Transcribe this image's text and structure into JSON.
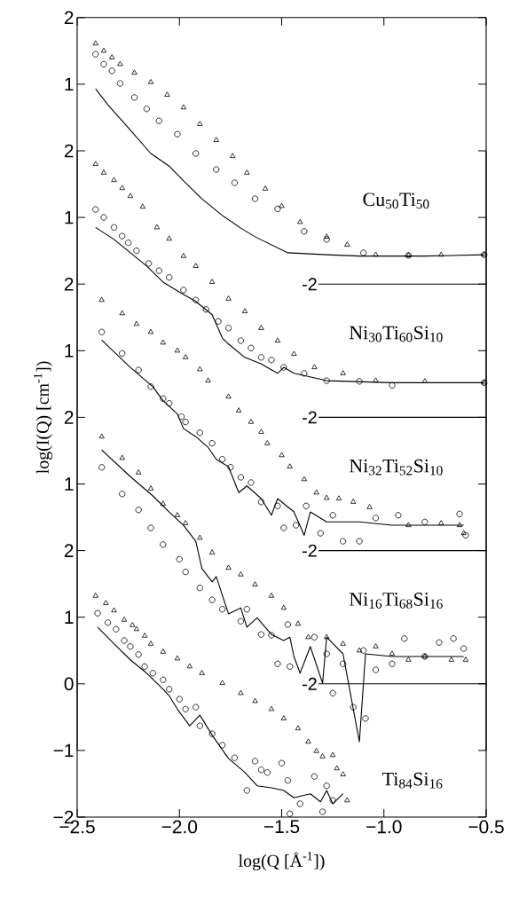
{
  "chart_data": [
    {
      "type": "scatter",
      "xlim": [
        -2.5,
        -0.5
      ],
      "xticks": [
        {
          "value": -2.5,
          "label": null
        },
        {
          "value": -2.0,
          "label": null
        },
        {
          "value": -1.5,
          "label": null
        },
        {
          "value": -1.0,
          "label": null
        },
        {
          "value": -0.5,
          "label": null
        }
      ],
      "tick_labels": "y",
      "ylim": [
        -2,
        2
      ],
      "yticks": [
        1,
        2
      ],
      "ref_lines": [
        {
          "axis": "y",
          "value": -2,
          "label": "-2",
          "color": "#000000"
        }
      ],
      "annotations": [
        "Cu$_{50}$Ti$_{50}$"
      ],
      "series": [
        {
          "marker": "triangle",
          "color": "#000000",
          "x": [
            -2.41,
            -2.37,
            -2.33,
            -2.29,
            -2.22,
            -2.14,
            -2.06,
            -1.98,
            -1.9,
            -1.82,
            -1.74,
            -1.67,
            -1.58,
            -1.5,
            -1.41,
            -1.28,
            -1.18,
            -1.04,
            -0.88,
            -0.72,
            -0.51
          ],
          "values": [
            1.61,
            1.5,
            1.4,
            1.3,
            1.17,
            1.03,
            0.84,
            0.65,
            0.4,
            0.16,
            -0.08,
            -0.33,
            -0.57,
            -0.83,
            -1.07,
            -1.29,
            -1.41,
            -1.56,
            -1.57,
            -1.56,
            -1.56
          ]
        },
        {
          "marker": "circle",
          "color": "#000000",
          "x": [
            -2.41,
            -2.37,
            -2.33,
            -2.29,
            -2.22,
            -2.16,
            -2.1,
            -2.01,
            -1.92,
            -1.82,
            -1.73,
            -1.63,
            -1.52,
            -1.39,
            -1.28,
            -1.1,
            -0.88,
            -0.51
          ],
          "values": [
            1.45,
            1.3,
            1.2,
            1.01,
            0.8,
            0.63,
            0.45,
            0.25,
            -0.04,
            -0.28,
            -0.48,
            -0.72,
            -0.87,
            -1.21,
            -1.33,
            -1.53,
            -1.57,
            -1.56
          ]
        },
        {
          "type": "line",
          "marker": "none",
          "color": "#000000",
          "x": [
            -2.41,
            -2.35,
            -2.24,
            -2.14,
            -2.05,
            -1.97,
            -1.89,
            -1.79,
            -1.7,
            -1.63,
            -1.47,
            -1.28,
            -1.12,
            -0.8,
            -0.51
          ],
          "values": [
            0.93,
            0.69,
            0.31,
            -0.04,
            -0.23,
            -0.48,
            -0.72,
            -0.97,
            -1.16,
            -1.29,
            -1.53,
            -1.56,
            -1.58,
            -1.58,
            -1.56
          ]
        }
      ]
    },
    {
      "type": "scatter",
      "xlim": [
        -2.5,
        -0.5
      ],
      "tick_labels": "y",
      "ylim": [
        -2,
        2
      ],
      "yticks": [
        1,
        2
      ],
      "ref_lines": [
        {
          "axis": "y",
          "value": -2,
          "label": "-2",
          "color": "#000000"
        }
      ],
      "annotations": [
        "Ni$_{30}$Ti$_{60}$Si$_{10}$"
      ],
      "series": [
        {
          "marker": "triangle",
          "color": "#000000",
          "x": [
            -2.41,
            -2.37,
            -2.32,
            -2.28,
            -2.24,
            -2.18,
            -2.11,
            -2.05,
            -1.98,
            -1.92,
            -1.84,
            -1.76,
            -1.68,
            -1.6,
            -1.52,
            -1.44,
            -1.34,
            -1.2,
            -1.04,
            -0.8,
            -0.51
          ],
          "values": [
            1.8,
            1.67,
            1.56,
            1.44,
            1.32,
            1.16,
            0.85,
            0.68,
            0.42,
            0.27,
            0.03,
            -0.22,
            -0.41,
            -0.66,
            -0.85,
            -1.05,
            -1.25,
            -1.34,
            -1.45,
            -1.46,
            -1.48
          ]
        },
        {
          "marker": "circle",
          "color": "#000000",
          "x": [
            -2.41,
            -2.37,
            -2.32,
            -2.28,
            -2.25,
            -2.21,
            -2.15,
            -2.1,
            -2.05,
            -1.98,
            -1.92,
            -1.87,
            -1.81,
            -1.76,
            -1.7,
            -1.65,
            -1.6,
            -1.55,
            -1.49,
            -1.39,
            -1.28,
            -1.12,
            -0.96,
            -0.51
          ],
          "values": [
            1.12,
            1.0,
            0.85,
            0.72,
            0.62,
            0.5,
            0.31,
            0.2,
            0.1,
            -0.09,
            -0.24,
            -0.38,
            -0.56,
            -0.66,
            -0.85,
            -0.96,
            -1.1,
            -1.14,
            -1.25,
            -1.34,
            -1.45,
            -1.46,
            -1.52,
            -1.48
          ]
        },
        {
          "type": "line",
          "marker": "none",
          "color": "#000000",
          "x": [
            -2.41,
            -2.32,
            -2.24,
            -2.16,
            -2.08,
            -2.0,
            -1.92,
            -1.84,
            -1.79,
            -1.76,
            -1.68,
            -1.6,
            -1.52,
            -1.49,
            -1.44,
            -1.28,
            -0.96,
            -0.51
          ],
          "values": [
            0.85,
            0.67,
            0.47,
            0.27,
            0.03,
            -0.12,
            -0.26,
            -0.46,
            -0.81,
            -0.9,
            -1.1,
            -1.2,
            -1.34,
            -1.25,
            -1.34,
            -1.45,
            -1.48,
            -1.48
          ]
        }
      ]
    },
    {
      "type": "scatter",
      "xlim": [
        -2.5,
        -0.5
      ],
      "tick_labels": "y",
      "ylim": [
        -2,
        2
      ],
      "yticks": [
        1,
        2
      ],
      "ylabel": "log(I(Q) [cm$^{-1}$])",
      "ref_lines": [
        {
          "axis": "y",
          "value": -2,
          "label": "-2",
          "color": "#000000"
        }
      ],
      "annotations": [
        "Ni$_{32}$Ti$_{52}$Si$_{10}$"
      ],
      "series": [
        {
          "marker": "triangle",
          "color": "#000000",
          "x": [
            -2.38,
            -2.28,
            -2.21,
            -2.14,
            -2.08,
            -2.01,
            -1.97,
            -1.9,
            -1.86,
            -1.76,
            -1.71,
            -1.65,
            -1.6,
            -1.57,
            -1.5,
            -1.46,
            -1.39,
            -1.33,
            -1.28,
            -1.22,
            -1.15,
            -1.07,
            -0.88,
            -0.72,
            -0.63,
            -0.61
          ],
          "values": [
            1.76,
            1.56,
            1.4,
            1.28,
            1.12,
            1.0,
            0.9,
            0.72,
            0.55,
            0.31,
            0.1,
            -0.07,
            -0.22,
            -0.39,
            -0.57,
            -0.74,
            -0.93,
            -1.13,
            -1.21,
            -1.22,
            -1.27,
            -1.35,
            -1.62,
            -1.59,
            -1.62,
            -1.74
          ]
        },
        {
          "marker": "circle",
          "color": "#000000",
          "x": [
            -2.38,
            -2.28,
            -2.2,
            -2.14,
            -2.08,
            -2.05,
            -1.99,
            -1.97,
            -1.9,
            -1.84,
            -1.79,
            -1.75,
            -1.7,
            -1.65,
            -1.6,
            -1.52,
            -1.49,
            -1.43,
            -1.38,
            -1.31,
            -1.25,
            -1.2,
            -1.12,
            -1.04,
            -0.93,
            -0.8,
            -0.63,
            -0.6
          ],
          "values": [
            1.28,
            0.96,
            0.71,
            0.46,
            0.28,
            0.21,
            0.01,
            -0.07,
            -0.23,
            -0.39,
            -0.63,
            -0.75,
            -0.9,
            -0.98,
            -1.27,
            -1.33,
            -1.66,
            -1.62,
            -1.33,
            -1.74,
            -1.47,
            -1.86,
            -1.86,
            -1.51,
            -1.47,
            -1.57,
            -1.45,
            -1.77
          ]
        },
        {
          "type": "line",
          "marker": "none",
          "color": "#000000",
          "x": [
            -2.38,
            -2.24,
            -2.13,
            -2.08,
            -2.01,
            -1.98,
            -1.92,
            -1.86,
            -1.82,
            -1.76,
            -1.71,
            -1.67,
            -1.6,
            -1.55,
            -1.52,
            -1.44,
            -1.39,
            -1.36,
            -1.28,
            -1.12,
            -0.96,
            -0.61
          ],
          "values": [
            1.16,
            0.75,
            0.46,
            0.25,
            0.05,
            -0.17,
            -0.29,
            -0.45,
            -0.63,
            -0.74,
            -1.13,
            -1.03,
            -1.22,
            -1.47,
            -1.22,
            -1.42,
            -1.77,
            -1.42,
            -1.57,
            -1.57,
            -1.62,
            -1.62
          ]
        }
      ]
    },
    {
      "type": "scatter",
      "xlim": [
        -2.5,
        -0.5
      ],
      "tick_labels": "y",
      "ylim": [
        -3,
        2
      ],
      "yticks": [
        1,
        2
      ],
      "ref_lines": [
        {
          "axis": "y",
          "value": -2,
          "label": "-2",
          "color": "#000000"
        }
      ],
      "annotations": [
        "Ni$_{16}$Ti$_{68}$Si$_{16}$"
      ],
      "series": [
        {
          "marker": "triangle",
          "color": "#000000",
          "x": [
            -2.38,
            -2.28,
            -2.2,
            -2.14,
            -2.08,
            -2.01,
            -1.97,
            -1.9,
            -1.84,
            -1.76,
            -1.7,
            -1.63,
            -1.55,
            -1.49,
            -1.42,
            -1.37,
            -1.28,
            -1.2,
            -1.12,
            -1.04,
            -0.96,
            -0.88,
            -0.8,
            -0.67,
            -0.6
          ],
          "values": [
            1.71,
            1.39,
            1.17,
            0.93,
            0.7,
            0.53,
            0.41,
            0.19,
            -0.03,
            -0.26,
            -0.36,
            -0.51,
            -0.68,
            -0.86,
            -1.1,
            -1.3,
            -1.3,
            -1.4,
            -1.5,
            -1.44,
            -1.55,
            -1.64,
            -1.59,
            -1.64,
            -1.64
          ]
        },
        {
          "marker": "circle",
          "color": "#000000",
          "x": [
            -2.38,
            -2.28,
            -2.2,
            -2.14,
            -2.08,
            -2.0,
            -1.97,
            -1.9,
            -1.84,
            -1.79,
            -1.7,
            -1.67,
            -1.6,
            -1.55,
            -1.52,
            -1.47,
            -1.46,
            -1.34,
            -1.28,
            -1.25,
            -1.2,
            -1.15,
            -1.1,
            -1.09,
            -1.04,
            -0.96,
            -0.9,
            -0.8,
            -0.73,
            -0.66,
            -0.61
          ],
          "values": [
            1.25,
            0.85,
            0.61,
            0.34,
            0.09,
            -0.13,
            -0.32,
            -0.56,
            -0.74,
            -0.88,
            -1.06,
            -0.88,
            -1.26,
            -1.27,
            -1.7,
            -1.11,
            -1.74,
            -1.3,
            -1.55,
            -2.14,
            -1.7,
            -2.35,
            -1.5,
            -2.52,
            -1.79,
            -1.7,
            -1.32,
            -1.59,
            -1.38,
            -1.32,
            -1.47
          ]
        },
        {
          "type": "line",
          "marker": "none",
          "color": "#000000",
          "x": [
            -2.38,
            -2.24,
            -2.13,
            -2.05,
            -1.98,
            -1.92,
            -1.89,
            -1.84,
            -1.82,
            -1.76,
            -1.7,
            -1.67,
            -1.62,
            -1.55,
            -1.49,
            -1.46,
            -1.44,
            -1.41,
            -1.36,
            -1.3,
            -1.28,
            -1.2,
            -1.12,
            -1.09,
            -0.96,
            -0.61
          ],
          "values": [
            1.51,
            1.11,
            0.82,
            0.58,
            0.38,
            0.14,
            -0.27,
            -0.47,
            -0.39,
            -0.95,
            -0.86,
            -1.15,
            -1.01,
            -1.26,
            -1.35,
            -1.3,
            -1.59,
            -1.84,
            -1.44,
            -1.99,
            -1.3,
            -1.55,
            -2.87,
            -1.55,
            -1.59,
            -1.59
          ]
        }
      ]
    },
    {
      "type": "scatter",
      "xlabel": "log(Q [Å$^{-1}$])",
      "xlim": [
        -2.5,
        -0.5
      ],
      "xticks": [
        {
          "value": -2.5,
          "label": "−2.5"
        },
        {
          "value": -2.0,
          "label": "−2.0"
        },
        {
          "value": -1.5,
          "label": "−1.5"
        },
        {
          "value": -1.0,
          "label": "−1.0"
        },
        {
          "value": -0.5,
          "label": "−0.5"
        }
      ],
      "ylim": [
        -2,
        2
      ],
      "yticks": [
        {
          "value": -2,
          "label": "−2"
        },
        {
          "value": -1,
          "label": "−1"
        },
        0,
        1,
        2
      ],
      "annotations": [
        "Ti$_{84}$Si$_{16}$"
      ],
      "series": [
        {
          "marker": "triangle",
          "color": "#000000",
          "x": [
            -2.41,
            -2.36,
            -2.32,
            -2.27,
            -2.23,
            -2.21,
            -2.17,
            -2.14,
            -2.08,
            -2.01,
            -1.95,
            -1.89,
            -1.79,
            -1.7,
            -1.63,
            -1.55,
            -1.49,
            -1.42,
            -1.37,
            -1.33,
            -1.3,
            -1.25,
            -1.23,
            -1.2,
            -1.18
          ],
          "values": [
            1.32,
            1.21,
            1.1,
            0.96,
            0.88,
            0.82,
            0.72,
            0.6,
            0.48,
            0.38,
            0.26,
            0.16,
            0.01,
            -0.14,
            -0.26,
            -0.38,
            -0.52,
            -0.67,
            -0.87,
            -1.01,
            -1.09,
            -1.07,
            -1.27,
            -1.36,
            -1.75
          ]
        },
        {
          "marker": "circle",
          "color": "#000000",
          "x": [
            -2.4,
            -2.35,
            -2.31,
            -2.27,
            -2.24,
            -2.2,
            -2.17,
            -2.13,
            -2.08,
            -2.05,
            -2.0,
            -1.97,
            -1.92,
            -1.9,
            -1.84,
            -1.79,
            -1.73,
            -1.67,
            -1.63,
            -1.6,
            -1.57,
            -1.5,
            -1.47,
            -1.46,
            -1.41,
            -1.34,
            -1.3,
            -1.28,
            -1.25
          ],
          "values": [
            1.06,
            0.92,
            0.82,
            0.65,
            0.56,
            0.44,
            0.26,
            0.16,
            0.06,
            -0.08,
            -0.23,
            -0.38,
            -0.35,
            -0.63,
            -0.75,
            -0.92,
            -1.11,
            -1.6,
            -1.16,
            -1.29,
            -1.33,
            -1.19,
            -1.45,
            -1.95,
            -1.8,
            -1.39,
            -1.92,
            -1.53,
            -1.75
          ]
        },
        {
          "type": "line",
          "marker": "none",
          "color": "#000000",
          "x": [
            -2.4,
            -2.32,
            -2.24,
            -2.16,
            -2.08,
            -2.05,
            -2.01,
            -1.95,
            -1.9,
            -1.84,
            -1.76,
            -1.68,
            -1.62,
            -1.55,
            -1.49,
            -1.44,
            -1.36,
            -1.31,
            -1.28,
            -1.25,
            -1.2
          ],
          "values": [
            0.85,
            0.6,
            0.36,
            0.16,
            -0.08,
            -0.18,
            -0.38,
            -0.63,
            -0.47,
            -0.77,
            -1.12,
            -1.33,
            -1.53,
            -1.56,
            -1.6,
            -1.71,
            -1.65,
            -1.77,
            -1.6,
            -1.8,
            -1.65
          ]
        }
      ]
    }
  ]
}
